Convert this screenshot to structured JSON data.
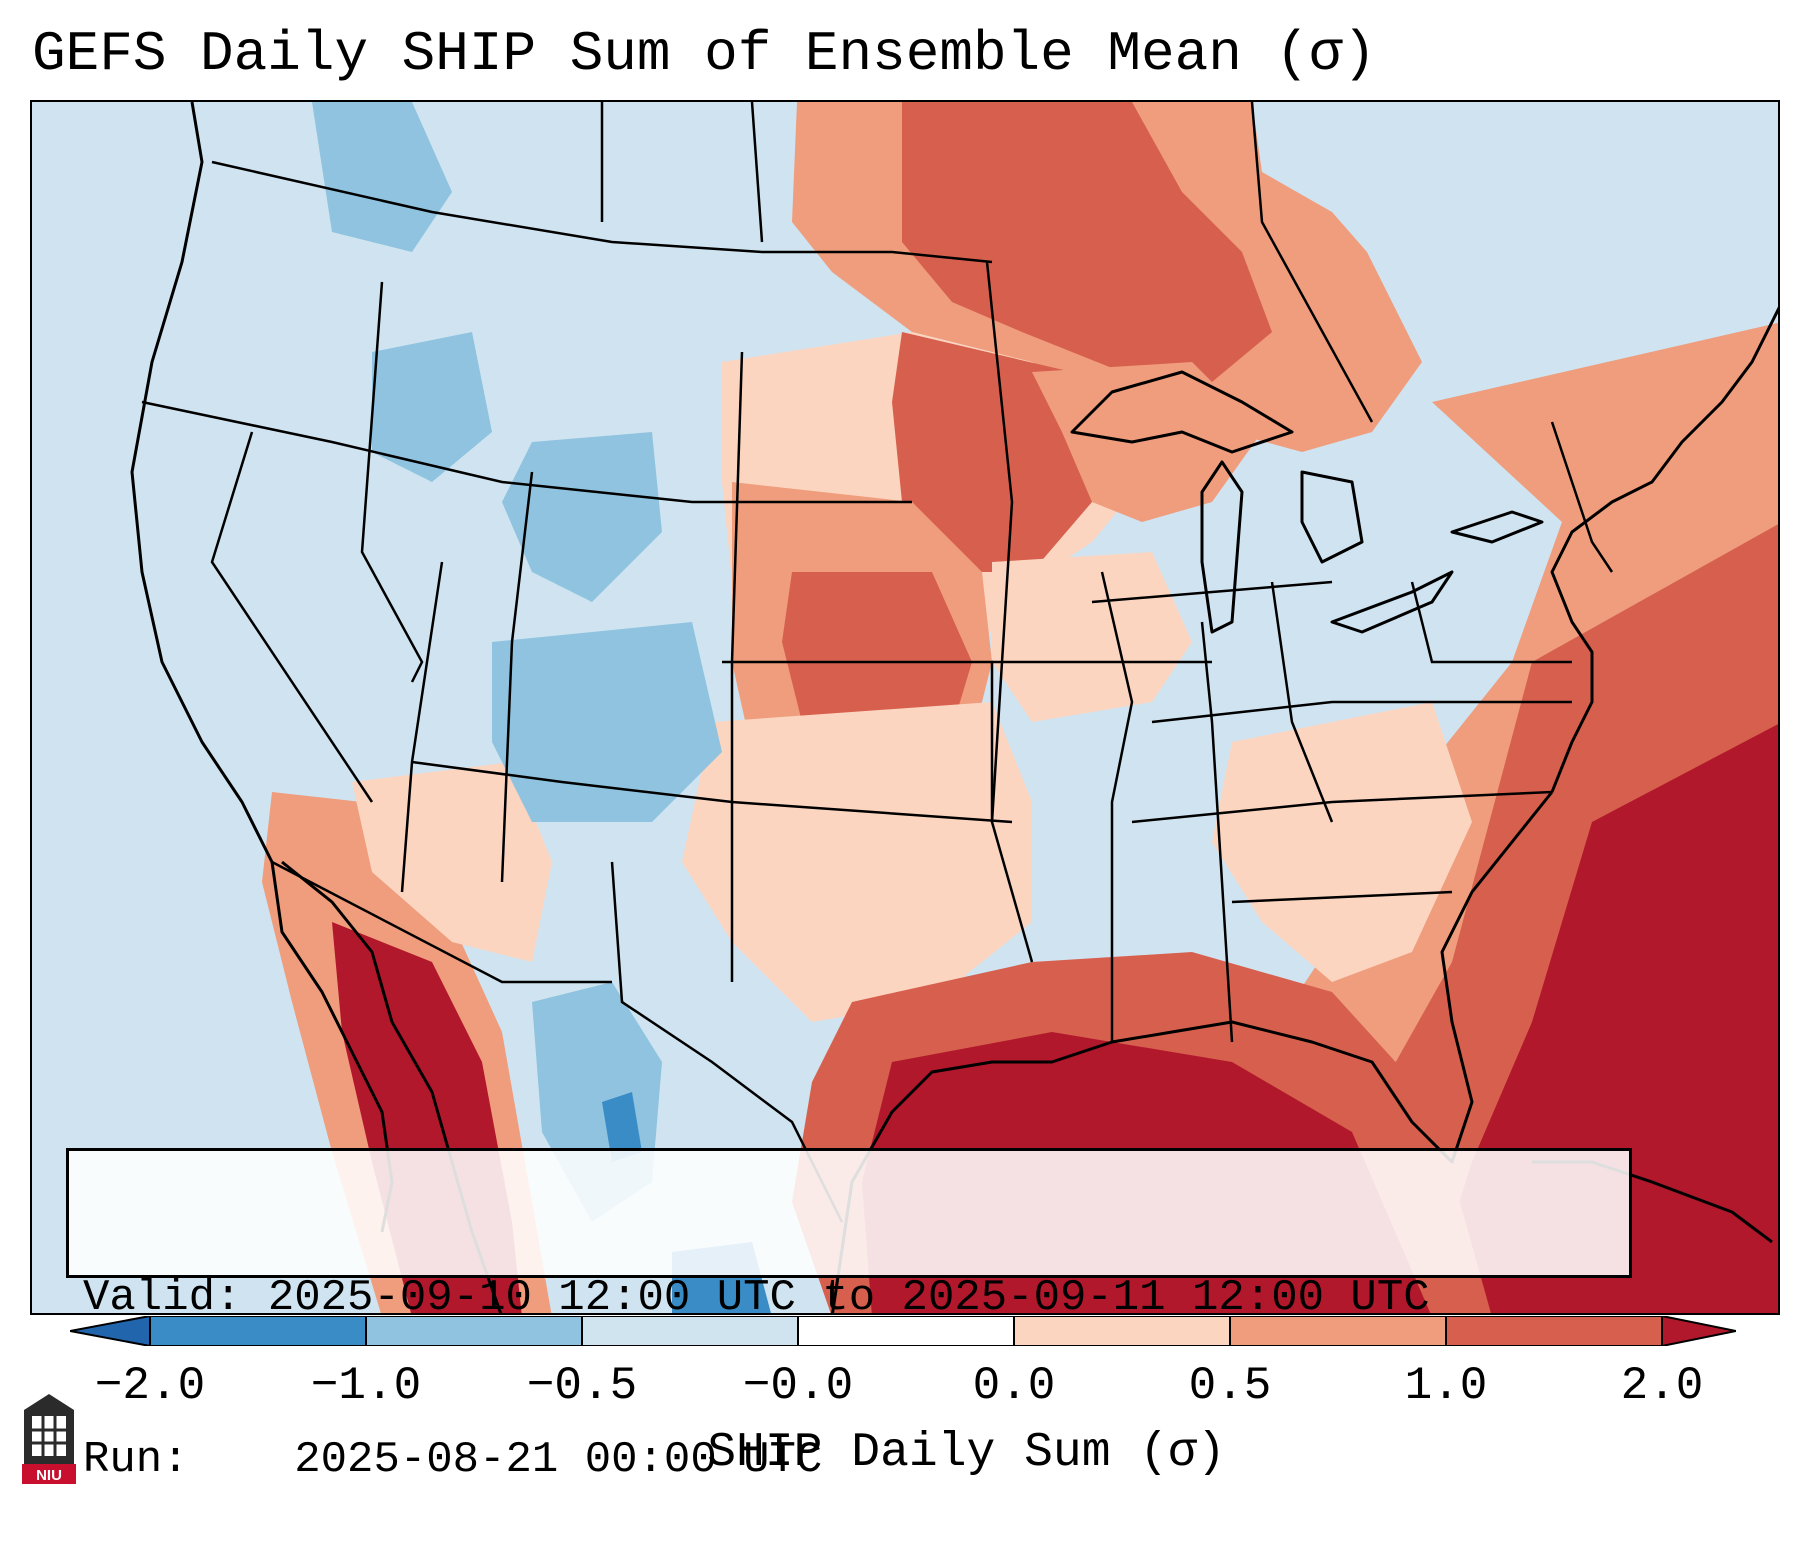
{
  "title": "GEFS Daily SHIP Sum of Ensemble Mean (σ)",
  "info": {
    "valid_label": "Valid:",
    "valid_value": "2025-09-10 12:00 UTC to 2025-09-11 12:00 UTC",
    "run_label": "Run:",
    "run_value": "2025-08-21 00:00 UTC"
  },
  "colorbar": {
    "label": "SHIP Daily Sum (σ)",
    "ticks": [
      "−2.0",
      "−1.0",
      "−0.5",
      "−0.0",
      "0.0",
      "0.5",
      "1.0",
      "2.0"
    ],
    "colors": [
      "#3a8cc6",
      "#8fc3df",
      "#d0e4f0",
      "#ffffff",
      "#fcd5c1",
      "#ef9d7c",
      "#d6604d",
      "#b2182b"
    ],
    "extend_low_color": "#2166ac",
    "extend_high_color": "#b2182b"
  },
  "map": {
    "region": "Contiguous United States",
    "background_color": "#cfe4f0"
  },
  "logo": {
    "text": "NIU"
  }
}
